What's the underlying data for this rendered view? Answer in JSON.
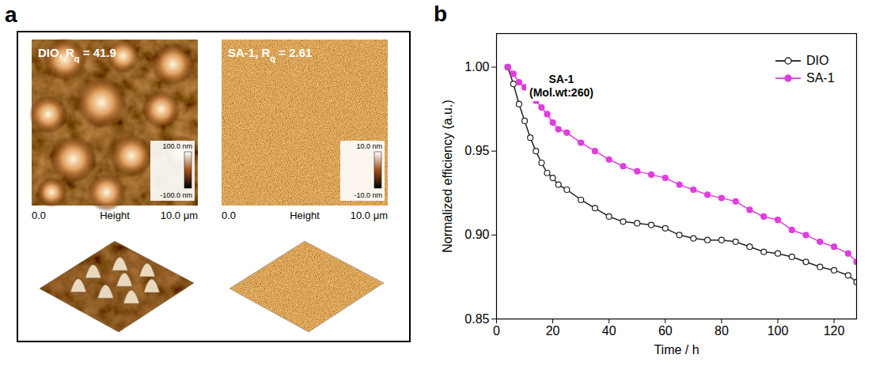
{
  "panel_a": {
    "panel_letter": "a",
    "images": [
      {
        "label": [
          "DIO, R",
          "q",
          " = 41.9"
        ],
        "colorbar": {
          "max_label": "100.0 nm",
          "min_label": "-100.0 nm"
        },
        "axis_start": "0.0",
        "axis_title": "Height",
        "axis_end": "10.0 μm"
      },
      {
        "label": [
          "SA-1, R",
          "q",
          " = 2.61"
        ],
        "colorbar": {
          "max_label": "10.0 nm",
          "min_label": "-10.0 nm"
        },
        "axis_start": "0.0",
        "axis_title": "Height",
        "axis_end": "10.0 μm"
      }
    ]
  },
  "chart_data": {
    "panel_letter": "b",
    "type": "line",
    "x_label": "Time / h",
    "y_label": "Normalized efficiency (a.u.)",
    "annotation": [
      "SA-1",
      "(Mol.wt:260)"
    ],
    "x": [
      4,
      6,
      8,
      10,
      12,
      14,
      16,
      18,
      20,
      22,
      25,
      30,
      35,
      40,
      45,
      50,
      55,
      60,
      65,
      70,
      75,
      80,
      85,
      90,
      95,
      100,
      105,
      110,
      115,
      120,
      125,
      128
    ],
    "series": [
      {
        "name": "DIO",
        "color": "#222222",
        "marker": "open_circle",
        "values": [
          1.0,
          0.99,
          0.978,
          0.968,
          0.958,
          0.95,
          0.943,
          0.937,
          0.934,
          0.93,
          0.927,
          0.921,
          0.916,
          0.911,
          0.908,
          0.907,
          0.906,
          0.904,
          0.9,
          0.898,
          0.897,
          0.897,
          0.896,
          0.893,
          0.89,
          0.889,
          0.887,
          0.884,
          0.881,
          0.879,
          0.876,
          0.872
        ]
      },
      {
        "name": "SA-1",
        "color": "#e03ce0",
        "marker": "filled_circle",
        "values": [
          1.0,
          0.996,
          0.991,
          0.988,
          0.984,
          0.98,
          0.976,
          0.972,
          0.967,
          0.963,
          0.961,
          0.955,
          0.95,
          0.945,
          0.941,
          0.938,
          0.936,
          0.934,
          0.93,
          0.927,
          0.924,
          0.922,
          0.92,
          0.915,
          0.911,
          0.909,
          0.903,
          0.9,
          0.896,
          0.893,
          0.889,
          0.884
        ]
      }
    ],
    "xlim": [
      0,
      128
    ],
    "xticks": [
      0,
      20,
      40,
      60,
      80,
      100,
      120
    ],
    "ylim": [
      0.85,
      1.02
    ],
    "yticks": [
      {
        "value": 0.85,
        "label": "0.85"
      },
      {
        "value": 0.9,
        "label": "0.90"
      },
      {
        "value": 0.95,
        "label": "0.95"
      },
      {
        "value": 1.0,
        "label": "1.00"
      }
    ],
    "legend": "upper right",
    "grid": false
  }
}
